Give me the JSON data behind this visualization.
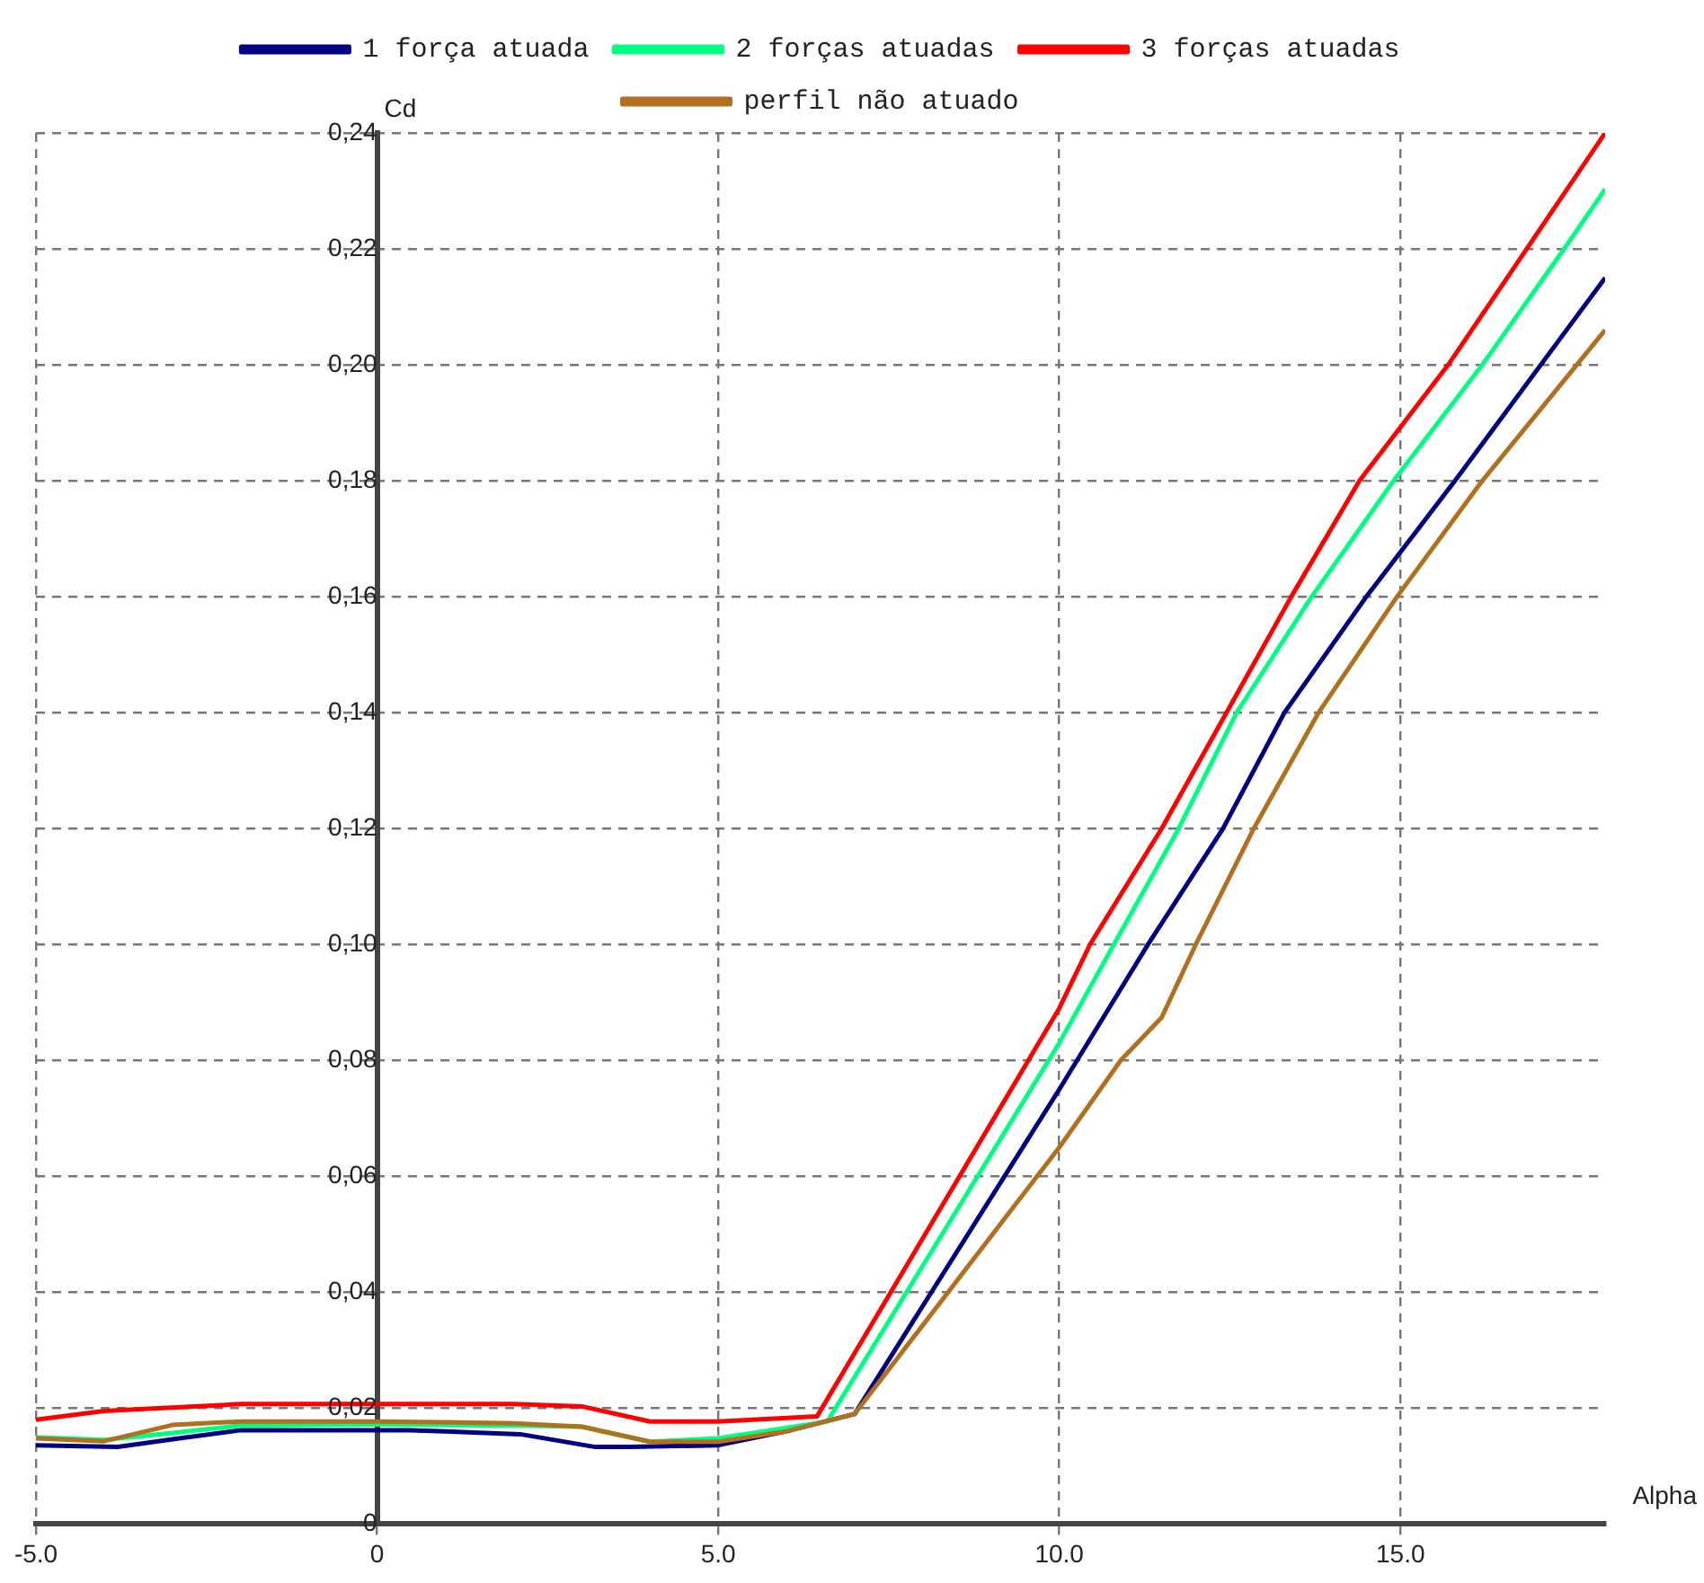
{
  "chart_data": {
    "type": "line",
    "xlabel": "Alpha",
    "ylabel": "Cd",
    "xlim": [
      -5,
      18
    ],
    "ylim": [
      0,
      0.24
    ],
    "xticks": [
      {
        "value": -5,
        "label": "-5.0"
      },
      0,
      {
        "value": 5,
        "label": "5.0"
      },
      {
        "value": 10,
        "label": "10.0"
      },
      {
        "value": 15,
        "label": "15.0"
      }
    ],
    "yticks": [
      0,
      {
        "value": 0.02,
        "label": "0,02"
      },
      {
        "value": 0.04,
        "label": "0,04"
      },
      {
        "value": 0.06,
        "label": "0,06"
      },
      {
        "value": 0.08,
        "label": "0,08"
      },
      {
        "value": 0.1,
        "label": "0,10"
      },
      {
        "value": 0.12,
        "label": "0,12"
      },
      {
        "value": 0.14,
        "label": "0,14"
      },
      {
        "value": 0.16,
        "label": "0,16"
      },
      {
        "value": 0.18,
        "label": "0,18"
      },
      {
        "value": 0.2,
        "label": "0,20"
      },
      {
        "value": 0.22,
        "label": "0,22"
      },
      {
        "value": 0.24,
        "label": "0,24"
      }
    ],
    "grid": true,
    "legend": "top",
    "marker": "none",
    "series": [
      {
        "name": "1 força atuada",
        "color": "#000080",
        "x": [
          -5,
          -3.8,
          -2.9,
          -2.0,
          -0.3,
          0.5,
          2.1,
          3.2,
          3.7,
          5,
          6,
          7.0,
          10,
          11.3,
          12.4,
          13.3,
          14.5,
          15.8,
          18
        ],
        "values": [
          0.0136,
          0.0133,
          0.0148,
          0.0162,
          0.0162,
          0.0162,
          0.0155,
          0.0133,
          0.0133,
          0.0136,
          0.016,
          0.019,
          0.075,
          0.1,
          0.12,
          0.14,
          0.16,
          0.18,
          0.215
        ]
      },
      {
        "name": "2 forças atuadas",
        "color": "#00ff80",
        "x": [
          -5,
          -4,
          -3,
          -2,
          0,
          2,
          3,
          4,
          5,
          6.6,
          10,
          10.8,
          11.75,
          12.6,
          13.7,
          14.9,
          16.2,
          17.4,
          18
        ],
        "values": [
          0.015,
          0.0145,
          0.0157,
          0.017,
          0.0172,
          0.017,
          0.0168,
          0.0142,
          0.0148,
          0.0177,
          0.083,
          0.1,
          0.12,
          0.14,
          0.16,
          0.18,
          0.2,
          0.22,
          0.2303
        ]
      },
      {
        "name": "3 forças atuadas",
        "color": "#ff0000",
        "x": [
          -5,
          -4,
          -2,
          0,
          2,
          3,
          4,
          5,
          6.45,
          10,
          10.45,
          11.5,
          12.45,
          13.4,
          14.4,
          15.7,
          16.85,
          18
        ],
        "values": [
          0.018,
          0.0195,
          0.0207,
          0.0207,
          0.0207,
          0.0203,
          0.0177,
          0.0177,
          0.0186,
          0.089,
          0.1,
          0.12,
          0.14,
          0.16,
          0.18,
          0.2,
          0.22,
          0.24
        ]
      },
      {
        "name": "perfil não atuado",
        "color": "#b07020",
        "x": [
          -5,
          -4,
          -3,
          -2,
          0,
          2,
          3,
          4,
          5,
          6,
          7,
          10,
          10.9,
          11.5,
          12.0,
          12.85,
          13.8,
          14.95,
          16.2,
          18
        ],
        "values": [
          0.0148,
          0.0143,
          0.0171,
          0.0177,
          0.0177,
          0.0174,
          0.0168,
          0.0142,
          0.0142,
          0.016,
          0.019,
          0.065,
          0.08,
          0.0874,
          0.1,
          0.12,
          0.14,
          0.16,
          0.18,
          0.206
        ]
      }
    ]
  }
}
